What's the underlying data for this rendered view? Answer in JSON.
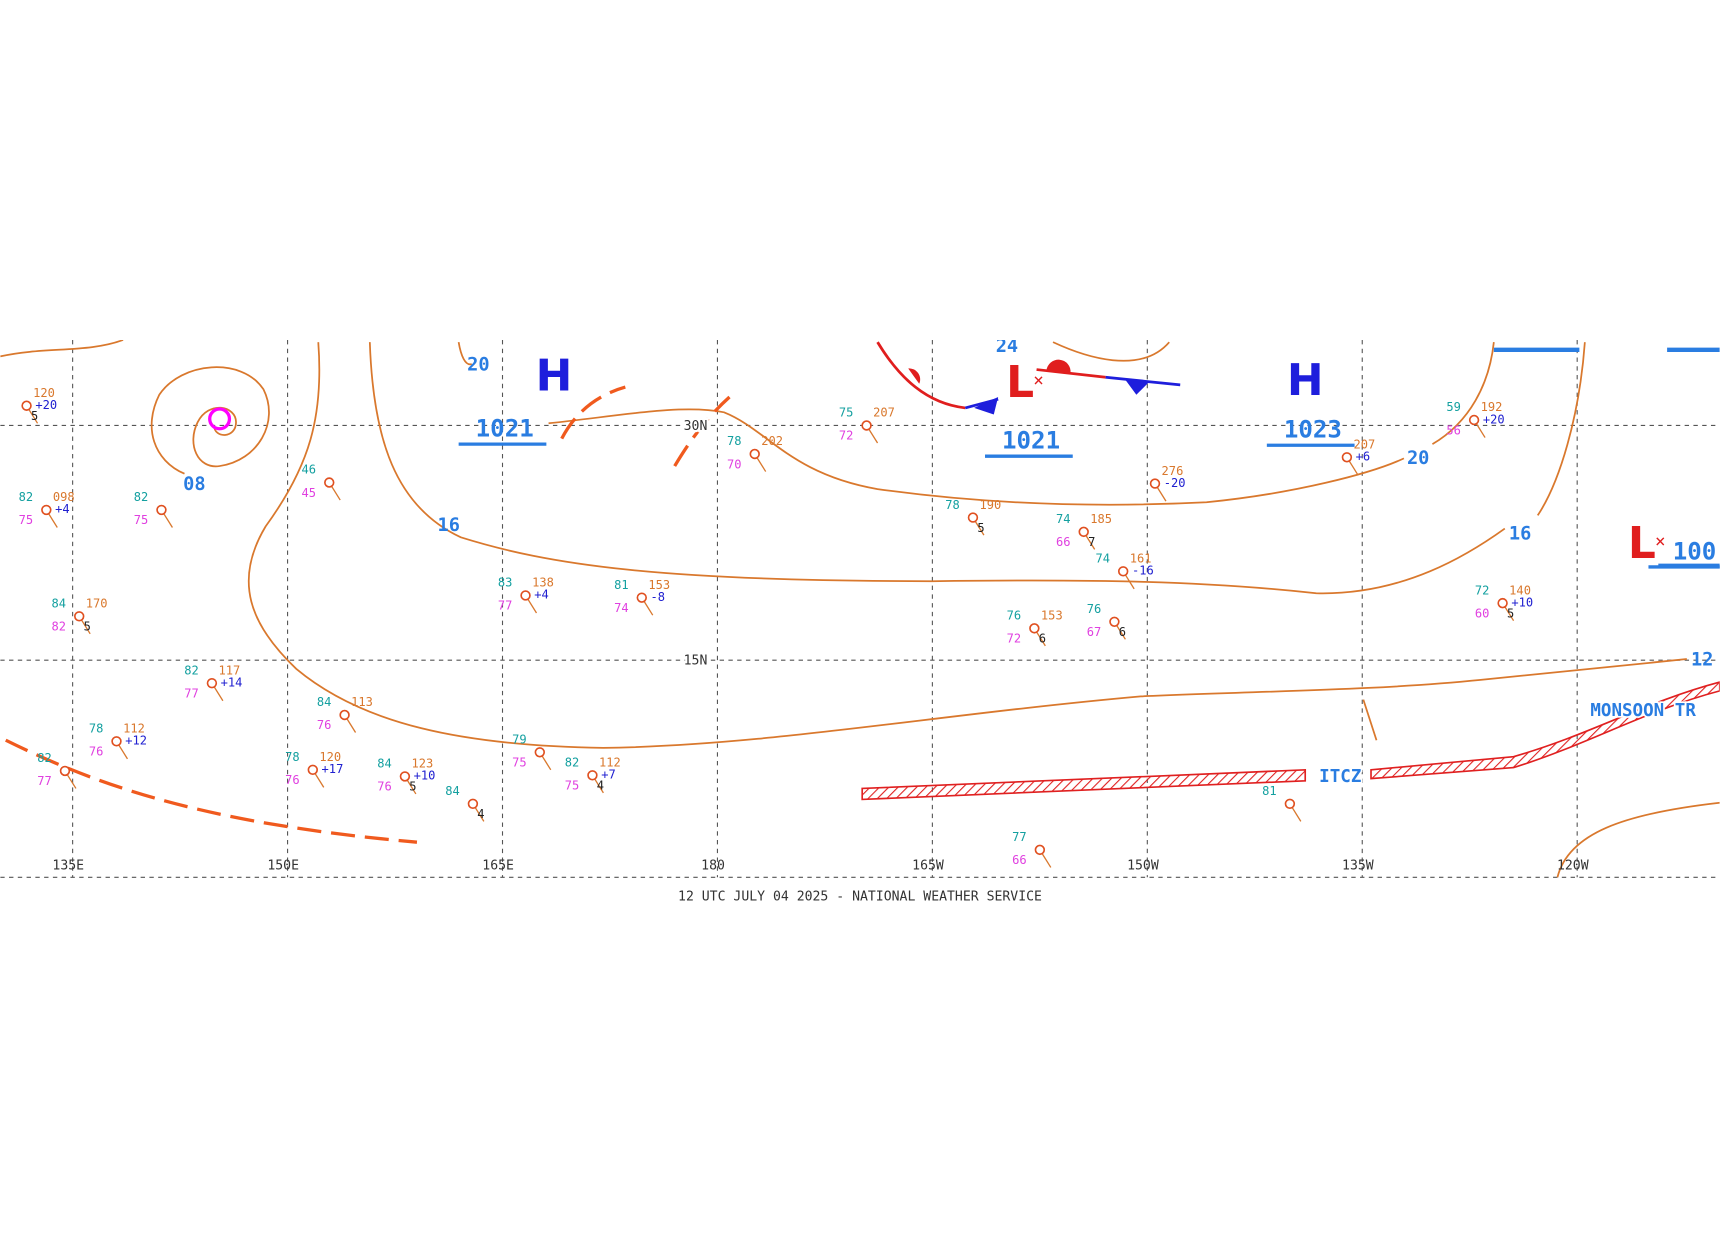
{
  "map": {
    "longitude_labels": [
      "135E",
      "150E",
      "165E",
      "180",
      "165W",
      "150W",
      "135W",
      "120W"
    ],
    "latitude_labels": [
      "30N",
      "15N"
    ],
    "pressure_centers": [
      {
        "type": "H",
        "pressure": "1021"
      },
      {
        "type": "L",
        "pressure": "1021"
      },
      {
        "type": "H",
        "pressure": "1023"
      },
      {
        "type": "L",
        "pressure": "100"
      }
    ],
    "isobar_labels": [
      "20",
      "08",
      "16",
      "24",
      "20",
      "16",
      "12"
    ],
    "features": [
      "ITCZ",
      "MONSOON TR"
    ],
    "stations": [
      {
        "t": "82",
        "p": "098",
        "tend": "+4",
        "td": "75"
      },
      {
        "t": "82",
        "td": "75"
      },
      {
        "t": "46",
        "td": "45"
      },
      {
        "t": "84",
        "p": "170",
        "td": "82",
        "w": "5"
      },
      {
        "t": "82",
        "p": "117",
        "tend": "+14",
        "td": "77"
      },
      {
        "t": "84",
        "p": "113",
        "td": "76"
      },
      {
        "t": "78",
        "p": "112",
        "tend": "+12",
        "td": "76"
      },
      {
        "t": "78",
        "p": "120",
        "tend": "+17",
        "td": "76"
      },
      {
        "t": "84",
        "p": "123",
        "tend": "+10",
        "td": "76",
        "w": "5"
      },
      {
        "t": "84",
        "w": "4"
      },
      {
        "t": "82",
        "td": "77"
      },
      {
        "t": "79",
        "td": "75"
      },
      {
        "t": "82",
        "p": "112",
        "tend": "+7",
        "td": "75",
        "w": "4"
      },
      {
        "t": "83",
        "p": "138",
        "tend": "+4",
        "td": "77"
      },
      {
        "t": "81",
        "p": "153",
        "tend": "-8",
        "td": "74"
      },
      {
        "t": "78",
        "p": "202",
        "td": "70"
      },
      {
        "t": "75",
        "p": "207",
        "td": "72"
      },
      {
        "t": "78",
        "p": "190",
        "w": "5"
      },
      {
        "t": "74",
        "p": "185",
        "td": "66",
        "w": "7"
      },
      {
        "p": "276",
        "tend": "-20"
      },
      {
        "p": "207",
        "tend": "+6"
      },
      {
        "t": "59",
        "p": "192",
        "tend": "+20",
        "td": "56"
      },
      {
        "t": "72",
        "p": "140",
        "tend": "+10",
        "td": "60",
        "w": "5"
      },
      {
        "t": "81"
      },
      {
        "t": "77",
        "td": "66"
      },
      {
        "t": "76",
        "p": "153",
        "td": "72",
        "w": "6"
      },
      {
        "t": "76",
        "td": "67",
        "w": "6"
      },
      {
        "t": "74",
        "p": "161",
        "tend": "-16"
      },
      {
        "p": "120",
        "tend": "+20",
        "w": "5"
      }
    ]
  },
  "caption": "12 UTC JULY 04 2025 - NATIONAL WEATHER SERVICE"
}
